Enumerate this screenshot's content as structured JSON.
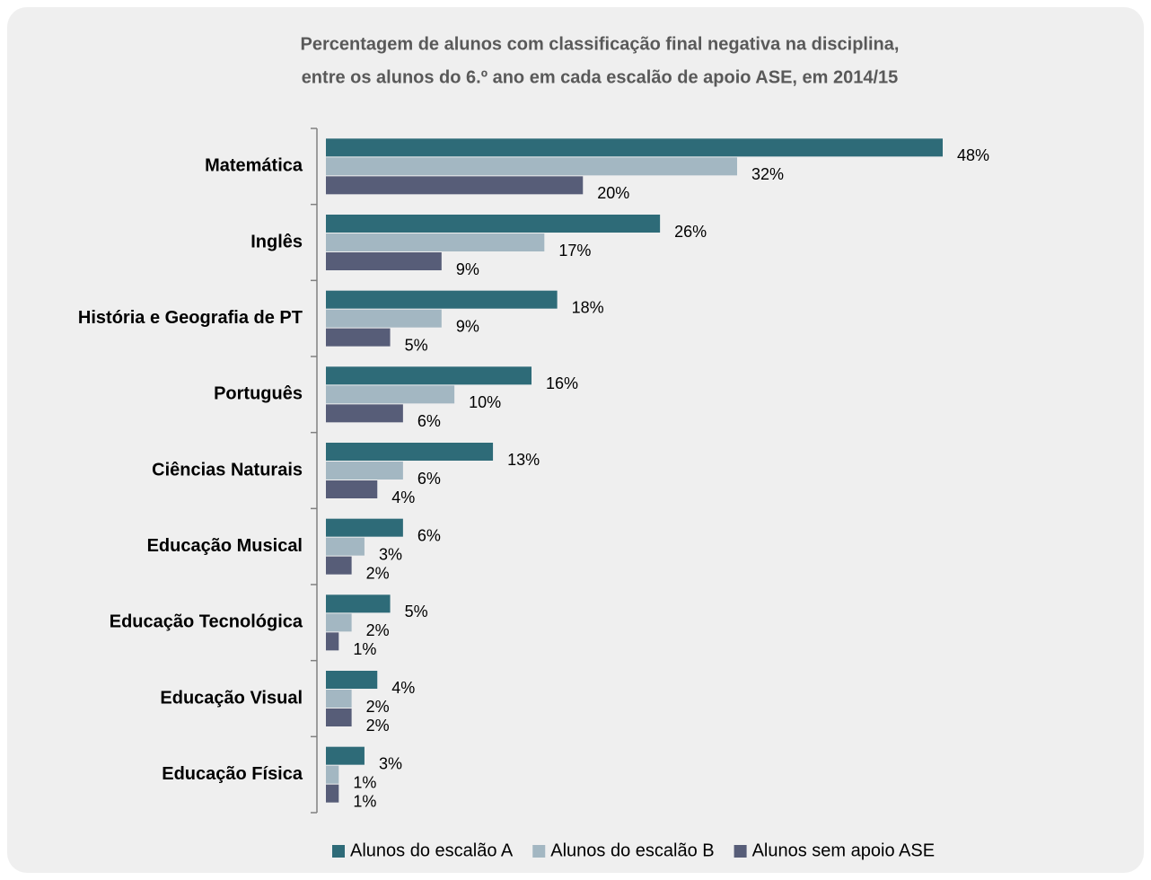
{
  "chart_data": {
    "type": "hbar",
    "title": [
      "Percentagem de alunos com classificação final negativa na disciplina,",
      "entre os alunos do 6.º ano em cada escalão de apoio ASE, em 2014/15"
    ],
    "categories": [
      "Matemática",
      "Inglês",
      "História e Geografia de PT",
      "Português",
      "Ciências Naturais",
      "Educação Musical",
      "Educação Tecnológica",
      "Educação Visual",
      "Educação Física"
    ],
    "series": [
      {
        "name": "Alunos do escalão A",
        "color": "#2e6b78",
        "values": [
          48,
          26,
          18,
          16,
          13,
          6,
          5,
          4,
          3
        ],
        "value_labels": [
          "48%",
          "26%",
          "18%",
          "16%",
          "13%",
          "6%",
          "5%",
          "4%",
          "3%"
        ]
      },
      {
        "name": "Alunos do escalão B",
        "color": "#a3b7c2",
        "values": [
          32,
          17,
          9,
          10,
          6,
          3,
          2,
          2,
          1
        ],
        "value_labels": [
          "32%",
          "17%",
          "9%",
          "10%",
          "6%",
          "3%",
          "2%",
          "2%",
          "1%"
        ]
      },
      {
        "name": "Alunos sem apoio ASE",
        "color": "#575d78",
        "values": [
          20,
          9,
          5,
          6,
          4,
          2,
          1,
          2,
          1
        ],
        "value_labels": [
          "20%",
          "9%",
          "5%",
          "6%",
          "4%",
          "2%",
          "1%",
          "2%",
          "1%"
        ]
      }
    ],
    "legend": "bottom"
  }
}
